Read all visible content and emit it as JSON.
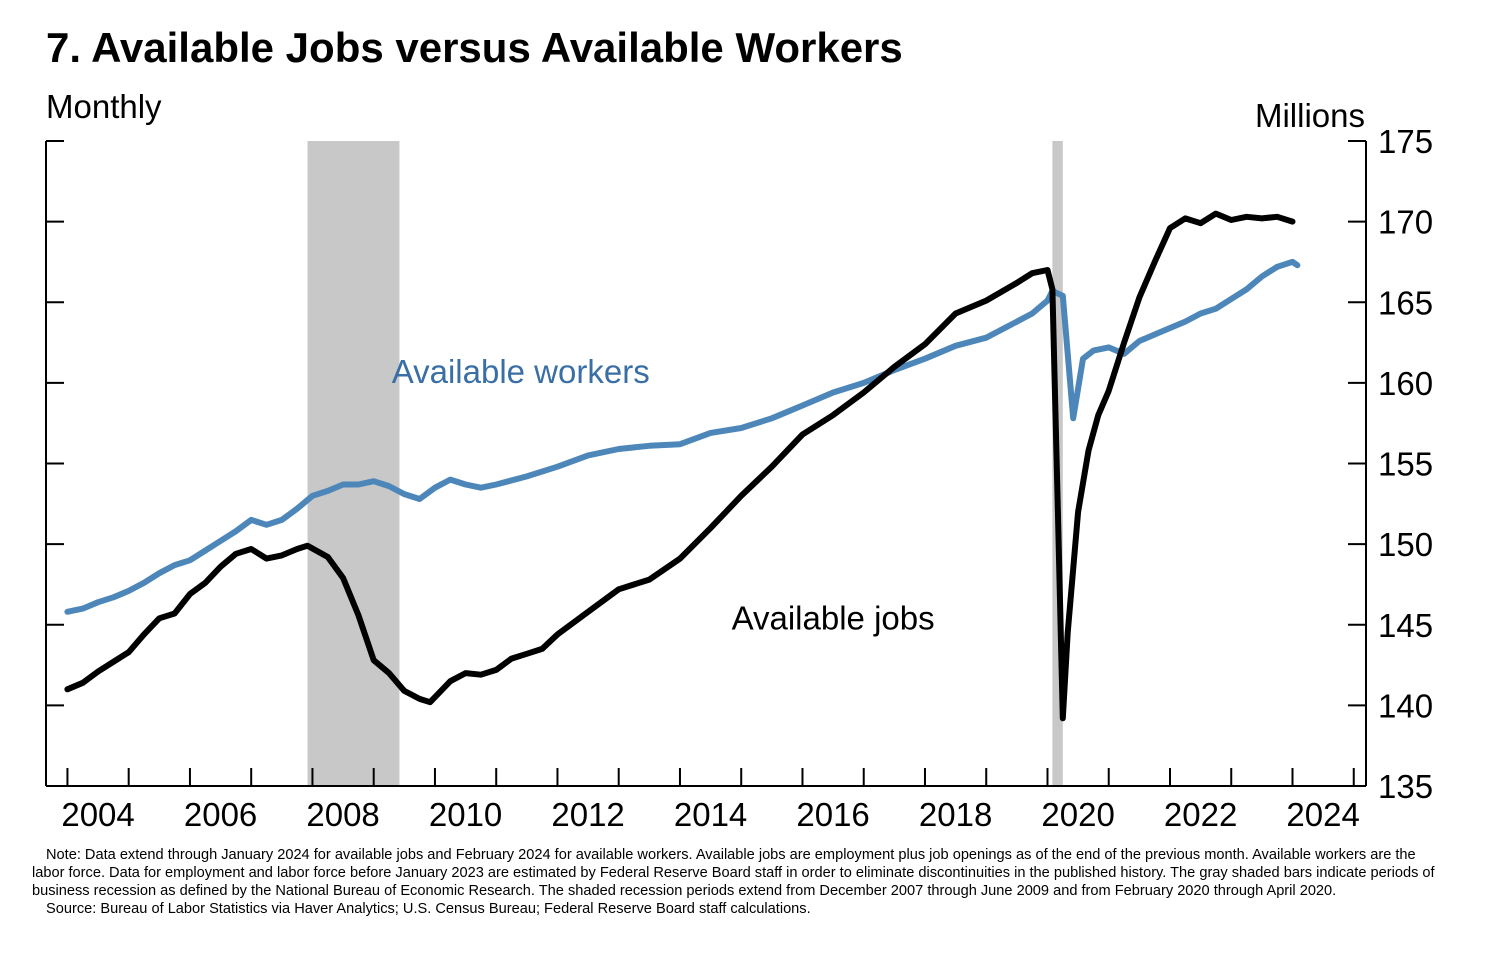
{
  "chart_data": {
    "type": "line",
    "title": "7. Available Jobs versus Available Workers",
    "subtitle": "Monthly",
    "ylabel": "Millions",
    "y_axis_side": "right",
    "ylim": [
      135,
      175
    ],
    "yticks": [
      135,
      140,
      145,
      150,
      155,
      160,
      165,
      170,
      175
    ],
    "xlim": [
      2003.65,
      2025.2
    ],
    "xticks": [
      2004,
      2006,
      2008,
      2010,
      2012,
      2014,
      2016,
      2018,
      2020,
      2022,
      2024
    ],
    "xtick_labels": [
      "2004",
      "2006",
      "2008",
      "2010",
      "2012",
      "2014",
      "2016",
      "2018",
      "2020",
      "2022",
      "2024"
    ],
    "grid": false,
    "recessions": [
      {
        "start": 2007.92,
        "end": 2009.42
      },
      {
        "start": 2020.08,
        "end": 2020.25
      }
    ],
    "series": [
      {
        "name": "Available workers",
        "color": "#4d87ba",
        "label_color": "#3a6fa5",
        "x": [
          2004.0,
          2004.25,
          2004.5,
          2004.75,
          2005.0,
          2005.25,
          2005.5,
          2005.75,
          2006.0,
          2006.25,
          2006.5,
          2006.75,
          2007.0,
          2007.25,
          2007.5,
          2007.75,
          2008.0,
          2008.25,
          2008.5,
          2008.75,
          2009.0,
          2009.25,
          2009.5,
          2009.75,
          2010.0,
          2010.25,
          2010.5,
          2010.75,
          2011.0,
          2011.5,
          2012.0,
          2012.5,
          2013.0,
          2013.5,
          2014.0,
          2014.5,
          2015.0,
          2015.5,
          2016.0,
          2016.5,
          2017.0,
          2017.5,
          2018.0,
          2018.5,
          2019.0,
          2019.5,
          2019.75,
          2020.0,
          2020.08,
          2020.25,
          2020.42,
          2020.58,
          2020.75,
          2021.0,
          2021.25,
          2021.5,
          2021.75,
          2022.0,
          2022.25,
          2022.5,
          2022.75,
          2023.0,
          2023.25,
          2023.5,
          2023.75,
          2024.0,
          2024.08
        ],
        "values": [
          145.8,
          146.0,
          146.4,
          146.7,
          147.1,
          147.6,
          148.2,
          148.7,
          149.0,
          149.6,
          150.2,
          150.8,
          151.5,
          151.2,
          151.5,
          152.2,
          153.0,
          153.3,
          153.7,
          153.7,
          153.9,
          153.6,
          153.1,
          152.8,
          153.5,
          154.0,
          153.7,
          153.5,
          153.7,
          154.2,
          154.8,
          155.5,
          155.9,
          156.1,
          156.2,
          156.9,
          157.2,
          157.8,
          158.6,
          159.4,
          160.0,
          160.8,
          161.5,
          162.3,
          162.8,
          163.8,
          164.3,
          165.1,
          165.7,
          165.4,
          157.8,
          161.5,
          162.0,
          162.2,
          161.8,
          162.6,
          163.0,
          163.4,
          163.8,
          164.3,
          164.6,
          165.2,
          165.8,
          166.6,
          167.2,
          167.5,
          167.3
        ]
      },
      {
        "name": "Available jobs",
        "color": "#000000",
        "label_color": "#000000",
        "x": [
          2004.0,
          2004.25,
          2004.5,
          2004.75,
          2005.0,
          2005.25,
          2005.5,
          2005.75,
          2006.0,
          2006.25,
          2006.5,
          2006.75,
          2007.0,
          2007.25,
          2007.5,
          2007.75,
          2007.92,
          2008.25,
          2008.5,
          2008.75,
          2009.0,
          2009.25,
          2009.5,
          2009.75,
          2009.92,
          2010.25,
          2010.5,
          2010.75,
          2011.0,
          2011.25,
          2011.5,
          2011.75,
          2012.0,
          2012.5,
          2013.0,
          2013.5,
          2014.0,
          2014.5,
          2015.0,
          2015.5,
          2016.0,
          2016.5,
          2017.0,
          2017.5,
          2018.0,
          2018.5,
          2019.0,
          2019.5,
          2019.75,
          2020.0,
          2020.08,
          2020.17,
          2020.25,
          2020.33,
          2020.5,
          2020.67,
          2020.83,
          2021.0,
          2021.25,
          2021.5,
          2021.75,
          2022.0,
          2022.25,
          2022.5,
          2022.75,
          2023.0,
          2023.25,
          2023.5,
          2023.75,
          2024.0
        ],
        "values": [
          141.0,
          141.4,
          142.1,
          142.7,
          143.3,
          144.4,
          145.4,
          145.7,
          146.9,
          147.6,
          148.6,
          149.4,
          149.7,
          149.1,
          149.3,
          149.7,
          149.9,
          149.2,
          147.9,
          145.6,
          142.8,
          142.0,
          140.9,
          140.4,
          140.2,
          141.5,
          142.0,
          141.9,
          142.2,
          142.9,
          143.2,
          143.5,
          144.4,
          145.8,
          147.2,
          147.8,
          149.1,
          151.0,
          153.0,
          154.8,
          156.8,
          158.0,
          159.4,
          161.0,
          162.4,
          164.3,
          165.1,
          166.2,
          166.8,
          167.0,
          165.8,
          152.0,
          139.2,
          144.5,
          152.0,
          155.8,
          158.0,
          159.5,
          162.5,
          165.3,
          167.5,
          169.6,
          170.2,
          169.9,
          170.5,
          170.1,
          170.3,
          170.2,
          170.3,
          170.0
        ]
      }
    ],
    "annotations": [
      {
        "text": "Available workers",
        "x": 2011.4,
        "y": 160.0,
        "series": 0
      },
      {
        "text": "Available jobs",
        "x": 2016.5,
        "y": 144.7,
        "series": 1
      }
    ]
  },
  "notes": {
    "note": "Note: Data extend through January 2024 for available jobs and February 2024 for available workers. Available jobs are employment plus job openings as of the end of the previous month. Available workers are the labor force. Data for employment and labor force before January 2023 are estimated by Federal Reserve Board staff in order to eliminate discontinuities in the published history. The gray shaded bars indicate periods of business recession as defined by the National Bureau of Economic Research. The shaded recession periods extend from December 2007 through June 2009 and from February 2020 through April 2020.",
    "source": "Source: Bureau of Labor Statistics via Haver Analytics; U.S. Census Bureau; Federal Reserve Board staff calculations."
  }
}
